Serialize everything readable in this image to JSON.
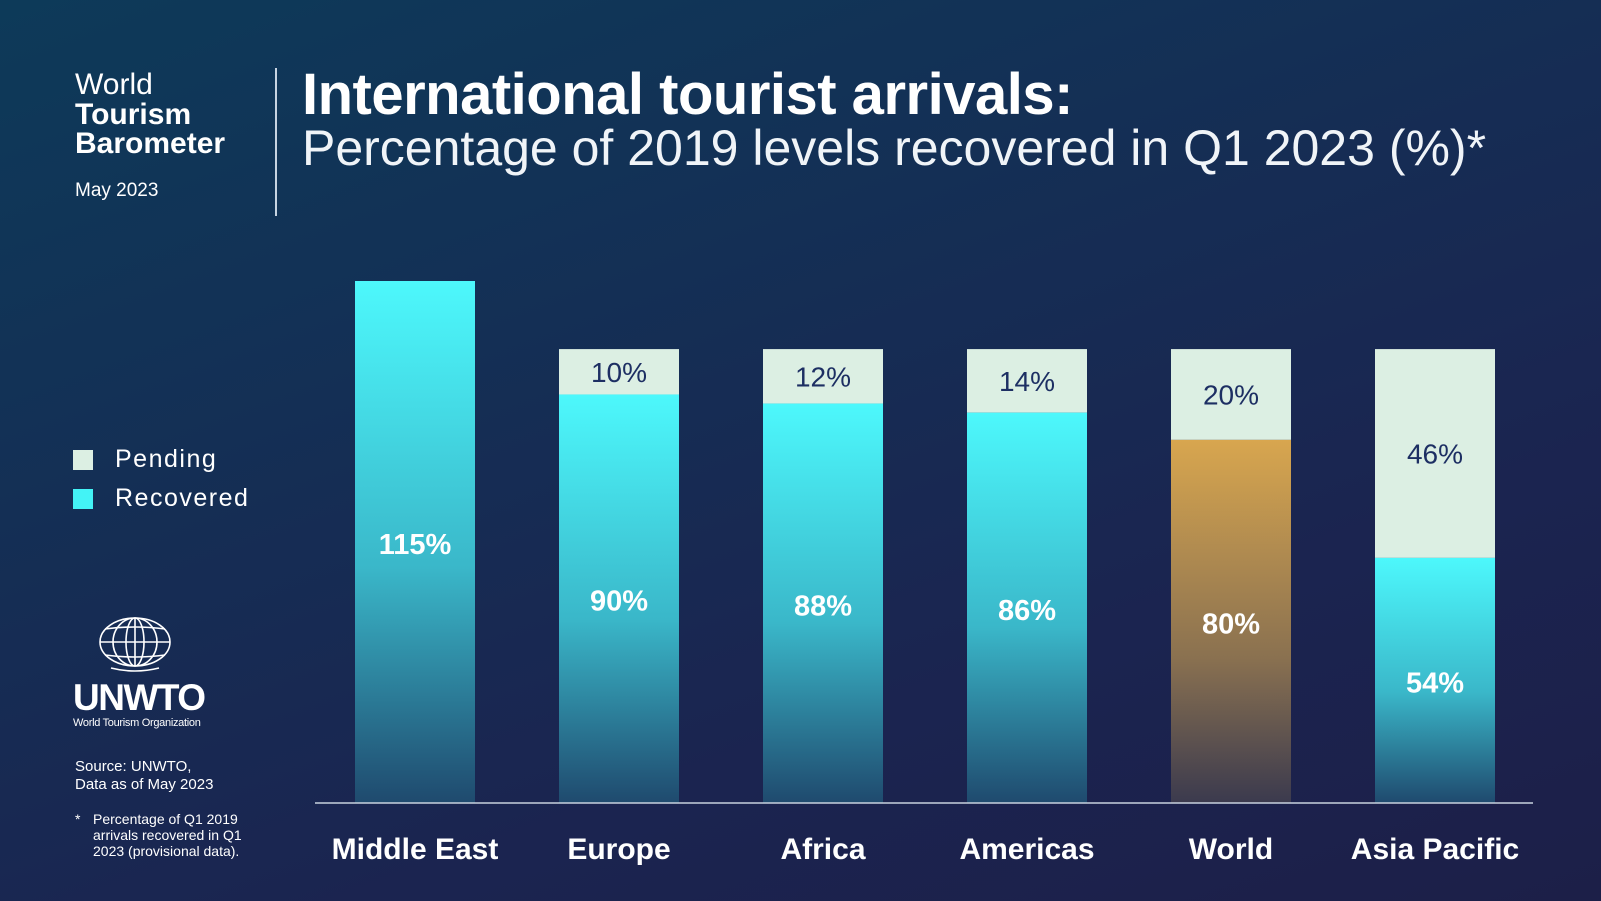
{
  "brand": {
    "line1": "World",
    "line2": "Tourism",
    "line3": "Barometer",
    "date": "May 2023"
  },
  "title": "International tourist arrivals:",
  "subtitle": "Percentage of 2019 levels recovered in Q1 2023 (%)*",
  "legend": [
    {
      "label": "Pending",
      "color": "#dcefe3"
    },
    {
      "label": "Recovered",
      "color": "#43f3f6"
    }
  ],
  "logo": {
    "name": "UNWTO",
    "subtitle": "World Tourism Organization",
    "icon": "globe-icon"
  },
  "source": {
    "line1": "Source: UNWTO,",
    "line2": "Data as of May 2023"
  },
  "footnote": {
    "mark": "*",
    "text": "Percentage of Q1 2019 arrivals recovered in Q1 2023 (provisional data)."
  },
  "colors": {
    "recovered_top": "#4df8fc",
    "recovered_bottom": "#1f4a6e",
    "world_top": "#d8a64f",
    "world_bottom": "#3b3a4e",
    "pending": "#dcefe3",
    "pending_text": "#1d2f63",
    "axis": "#c8d2de"
  },
  "chart_data": {
    "type": "bar",
    "stacked": true,
    "categories": [
      "Middle East",
      "Europe",
      "Africa",
      "Americas",
      "World",
      "Asia Pacific"
    ],
    "series": [
      {
        "name": "Recovered",
        "values": [
          115,
          90,
          88,
          86,
          80,
          54
        ]
      },
      {
        "name": "Pending",
        "values": [
          0,
          10,
          12,
          14,
          20,
          46
        ]
      }
    ],
    "data_labels": {
      "Recovered": [
        "115%",
        "90%",
        "88%",
        "86%",
        "80%",
        "54%"
      ],
      "Pending": [
        "",
        "10%",
        "12%",
        "14%",
        "20%",
        "46%"
      ]
    },
    "highlight_category": "World",
    "ylim": [
      0,
      115
    ],
    "grid": false
  }
}
